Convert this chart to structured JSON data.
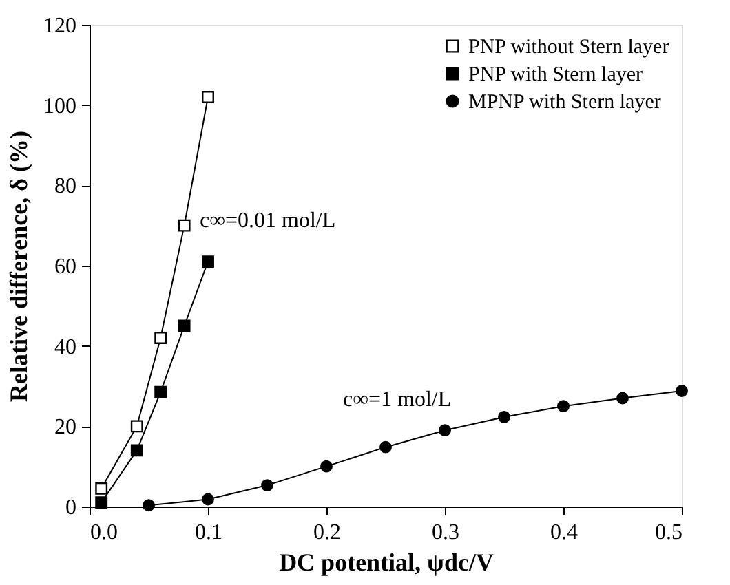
{
  "chart_data": {
    "type": "line",
    "xlabel": "DC potential, ψdc/V",
    "ylabel": "Relative difference, δ (%)",
    "xlim": [
      0.0,
      0.5
    ],
    "xticks": [
      {
        "value": 0,
        "label": "0.0"
      },
      0.1,
      0.2,
      0.3,
      0.4,
      0.5
    ],
    "ylim": [
      0,
      120
    ],
    "yticks": [
      0,
      20,
      40,
      60,
      80,
      100,
      120
    ],
    "legend": "top right",
    "series": [
      {
        "name": "PNP without Stern layer",
        "color": "#ffffff",
        "marker": "square",
        "x": [
          0.01,
          0.04,
          0.06,
          0.08,
          0.1
        ],
        "values": [
          4.5,
          20,
          42,
          70,
          102
        ]
      },
      {
        "name": "PNP with Stern layer",
        "color": "#000000",
        "marker": "square",
        "x": [
          0.01,
          0.04,
          0.06,
          0.08,
          0.1
        ],
        "values": [
          1,
          14,
          28.5,
          45,
          61
        ]
      },
      {
        "name": "MPNP with Stern layer",
        "color": "#000000",
        "marker": "circle",
        "x": [
          0.05,
          0.1,
          0.15,
          0.2,
          0.25,
          0.3,
          0.35,
          0.4,
          0.45,
          0.5
        ],
        "values": [
          0.3,
          1.8,
          5.3,
          10,
          14.8,
          19,
          22.3,
          25,
          27,
          28.8
        ]
      }
    ],
    "annotations": [
      "c∞=0.01 mol/L",
      "c∞=1 mol/L"
    ]
  }
}
